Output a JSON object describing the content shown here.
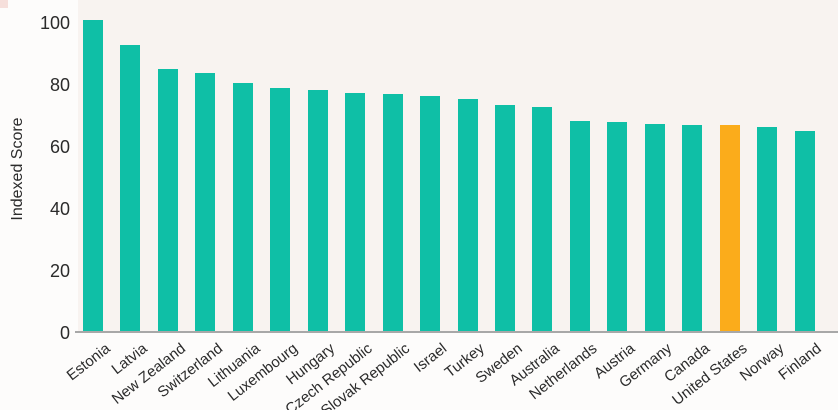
{
  "chart_data": {
    "type": "bar",
    "title": "",
    "xlabel": "",
    "ylabel": "Indexed Score",
    "yticks": [
      0,
      20,
      40,
      60,
      80,
      100
    ],
    "ylim": [
      0,
      107
    ],
    "grid": false,
    "legend": "none",
    "categories": [
      "Estonia",
      "Latvia",
      "New Zealand",
      "Switzerland",
      "Lithuania",
      "Luxembourg",
      "Hungary",
      "Czech Republic",
      "Slovak Republic",
      "Israel",
      "Turkey",
      "Sweden",
      "Australia",
      "Netherlands",
      "Austria",
      "Germany",
      "Canada",
      "United States",
      "Norway",
      "Finland"
    ],
    "values": [
      101,
      93,
      85,
      84,
      80.5,
      79,
      78.5,
      77.5,
      77,
      76.5,
      75.5,
      73.5,
      73,
      68.5,
      68,
      67.5,
      67,
      67,
      66.5,
      65
    ],
    "highlight_category": "United States",
    "colors": {
      "bar": "#0FBFA6",
      "highlight_bar": "#FBAC1B",
      "plot_background": "#F8F3F0",
      "axis_line": "#A8A8A8",
      "text": "#2B2B2B"
    }
  }
}
